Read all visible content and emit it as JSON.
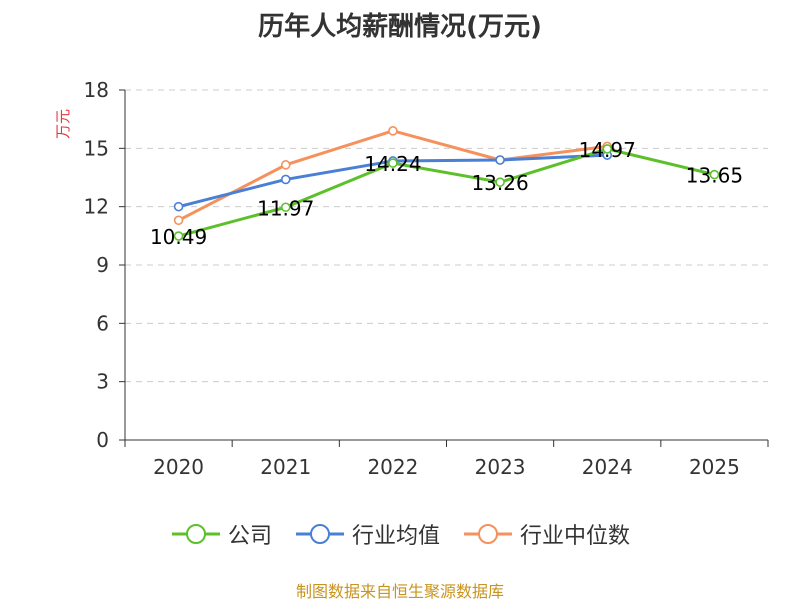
{
  "chart_data": {
    "type": "line",
    "title": "历年人均薪酬情况(万元)",
    "xlabel": "",
    "ylabel": "万元",
    "categories": [
      "2020",
      "2021",
      "2022",
      "2023",
      "2024",
      "2025"
    ],
    "ylim": [
      0,
      18
    ],
    "yticks": [
      0,
      3,
      6,
      9,
      12,
      15,
      18
    ],
    "grid": true,
    "legend_position": "bottom",
    "series": [
      {
        "name": "公司",
        "color": "#5cc02a",
        "values": [
          10.49,
          11.97,
          14.24,
          13.26,
          14.97,
          13.65
        ],
        "labels": [
          "10.49",
          "11.97",
          "14.24",
          "13.26",
          "14.97",
          "13.65"
        ]
      },
      {
        "name": "行业均值",
        "color": "#4a7fd6",
        "values": [
          12.0,
          13.4,
          14.35,
          14.4,
          14.65,
          null
        ]
      },
      {
        "name": "行业中位数",
        "color": "#f5915c",
        "values": [
          11.3,
          14.15,
          15.9,
          14.4,
          15.1,
          null
        ]
      }
    ]
  },
  "footer": {
    "text": "制图数据来自恒生聚源数据库",
    "color": "#c8941e"
  },
  "colors": {
    "ylabel": "#e0393e",
    "axis": "#333333",
    "grid": "#cccccc"
  }
}
